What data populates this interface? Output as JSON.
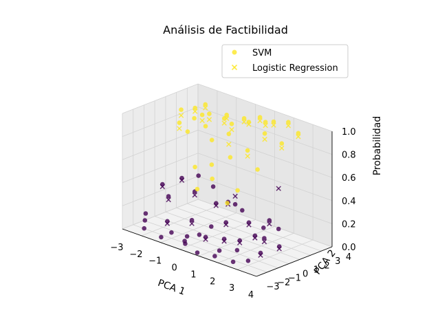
{
  "chart_data": {
    "type": "scatter",
    "title": "Análisis de Factibilidad",
    "xlabel": "PCA 1",
    "ylabel": "PCA 2",
    "zlabel": "Probabilidad",
    "xlim": [
      -3,
      4
    ],
    "ylim": [
      -3,
      4
    ],
    "zlim": [
      0,
      1
    ],
    "xticks": [
      "−3",
      "−2",
      "−1",
      "0",
      "1",
      "2",
      "3",
      "4"
    ],
    "yticks": [
      "−3",
      "−2",
      "−1",
      "0",
      "1",
      "2",
      "3",
      "4"
    ],
    "zticks": [
      "0.0",
      "0.2",
      "0.4",
      "0.6",
      "0.8",
      "1.0"
    ],
    "grid": true,
    "legend_position": "top-right",
    "colors": {
      "high": "#fde725",
      "low": "#440154"
    },
    "series": [
      {
        "name": "SVM",
        "marker": "circle",
        "points": [
          [
            -1.0,
            1.5,
            0.95
          ],
          [
            -0.5,
            2.0,
            0.92
          ],
          [
            -1.5,
            1.0,
            0.9
          ],
          [
            0.5,
            2.5,
            0.93
          ],
          [
            -0.8,
            0.8,
            0.88
          ],
          [
            1.2,
            2.8,
            0.96
          ],
          [
            -2.0,
            0.5,
            0.85
          ],
          [
            0.0,
            1.8,
            0.91
          ],
          [
            -1.2,
            1.2,
            0.94
          ],
          [
            0.8,
            3.0,
            0.97
          ],
          [
            -0.3,
            0.5,
            0.8
          ],
          [
            1.5,
            2.2,
            0.9
          ],
          [
            -1.8,
            1.6,
            0.95
          ],
          [
            0.3,
            1.0,
            0.87
          ],
          [
            -0.6,
            2.4,
            0.93
          ],
          [
            2.0,
            3.5,
            0.98
          ],
          [
            -1.4,
            0.2,
            0.82
          ],
          [
            1.0,
            1.5,
            0.75
          ],
          [
            0.6,
            0.6,
            0.7
          ],
          [
            1.8,
            1.0,
            0.65
          ],
          [
            -0.2,
            0.3,
            0.6
          ],
          [
            -2.3,
            1.2,
            0.92
          ],
          [
            1.4,
            3.2,
            0.96
          ],
          [
            0.2,
            2.6,
            0.94
          ],
          [
            -0.9,
            0.0,
            0.55
          ],
          [
            2.5,
            2.0,
            0.88
          ],
          [
            0.0,
            0.0,
            0.5
          ],
          [
            -1.6,
            2.2,
            0.97
          ],
          [
            1.1,
            0.4,
            0.45
          ],
          [
            2.8,
            3.0,
            0.95
          ],
          [
            -0.5,
            -0.5,
            0.4
          ],
          [
            0.9,
            -0.2,
            0.35
          ]
        ]
      },
      {
        "name": "Logistic Regression",
        "marker": "x",
        "points": [
          [
            -1.0,
            1.5,
            0.9
          ],
          [
            -0.5,
            2.0,
            0.88
          ],
          [
            0.5,
            2.5,
            0.91
          ],
          [
            1.2,
            2.8,
            0.93
          ],
          [
            -1.2,
            1.2,
            0.89
          ],
          [
            0.8,
            3.0,
            0.94
          ],
          [
            -1.8,
            1.6,
            0.92
          ],
          [
            -0.6,
            2.4,
            0.9
          ],
          [
            2.0,
            3.5,
            0.95
          ],
          [
            1.4,
            3.2,
            0.93
          ],
          [
            0.2,
            2.6,
            0.91
          ],
          [
            -1.6,
            2.2,
            0.94
          ],
          [
            -2.3,
            1.2,
            0.87
          ],
          [
            0.0,
            1.8,
            0.86
          ],
          [
            1.5,
            2.2,
            0.85
          ],
          [
            2.8,
            3.0,
            0.92
          ],
          [
            1.0,
            1.5,
            0.7
          ],
          [
            -2.0,
            0.5,
            0.8
          ],
          [
            0.3,
            1.0,
            0.78
          ],
          [
            2.5,
            2.0,
            0.84
          ]
        ]
      }
    ],
    "low_points": {
      "circle": [
        [
          -1.5,
          -1.5,
          0.1
        ],
        [
          -1.0,
          -2.0,
          0.05
        ],
        [
          -0.5,
          -1.0,
          0.15
        ],
        [
          0.0,
          -2.5,
          0.03
        ],
        [
          0.5,
          -1.5,
          0.08
        ],
        [
          1.0,
          -0.5,
          0.2
        ],
        [
          1.5,
          -2.0,
          0.04
        ],
        [
          2.0,
          -1.0,
          0.12
        ],
        [
          2.5,
          -2.5,
          0.02
        ],
        [
          3.0,
          -0.5,
          0.18
        ],
        [
          -2.0,
          -0.5,
          0.25
        ],
        [
          -2.5,
          -1.8,
          0.06
        ],
        [
          0.2,
          0.0,
          0.3
        ],
        [
          -0.8,
          -0.2,
          0.35
        ],
        [
          1.8,
          0.2,
          0.22
        ],
        [
          2.2,
          -1.6,
          0.07
        ],
        [
          3.2,
          -1.2,
          0.09
        ],
        [
          -1.2,
          -2.6,
          0.02
        ],
        [
          0.8,
          -2.8,
          0.01
        ],
        [
          -0.3,
          -1.8,
          0.05
        ],
        [
          1.3,
          -1.2,
          0.1
        ],
        [
          2.7,
          0.5,
          0.28
        ],
        [
          -2.2,
          -2.4,
          0.03
        ],
        [
          0.6,
          0.4,
          0.32
        ],
        [
          -1.7,
          0.2,
          0.4
        ],
        [
          1.0,
          1.0,
          0.25
        ],
        [
          2.0,
          1.2,
          0.15
        ],
        [
          3.5,
          0.0,
          0.12
        ],
        [
          -0.4,
          0.8,
          0.38
        ],
        [
          0.4,
          -0.8,
          0.14
        ],
        [
          1.6,
          -2.6,
          0.02
        ],
        [
          -2.8,
          -1.2,
          0.08
        ],
        [
          3.0,
          -2.0,
          0.04
        ],
        [
          -1.0,
          0.5,
          0.45
        ],
        [
          2.4,
          -0.3,
          0.16
        ],
        [
          0.0,
          -1.2,
          0.06
        ],
        [
          -2.6,
          0.0,
          0.3
        ],
        [
          1.2,
          0.0,
          0.35
        ],
        [
          2.9,
          1.0,
          0.2
        ],
        [
          -0.2,
          -2.2,
          0.03
        ]
      ],
      "x": [
        [
          -1.5,
          -1.5,
          0.08
        ],
        [
          -0.5,
          -1.0,
          0.12
        ],
        [
          0.5,
          -1.5,
          0.06
        ],
        [
          1.0,
          -0.5,
          0.18
        ],
        [
          2.0,
          -1.0,
          0.1
        ],
        [
          3.0,
          -0.5,
          0.15
        ],
        [
          -2.0,
          -0.5,
          0.22
        ],
        [
          0.2,
          0.0,
          0.28
        ],
        [
          1.8,
          0.2,
          0.2
        ],
        [
          3.2,
          -1.2,
          0.07
        ],
        [
          -0.8,
          -0.2,
          0.32
        ],
        [
          2.7,
          0.5,
          0.25
        ],
        [
          0.6,
          0.4,
          0.3
        ],
        [
          -1.7,
          0.2,
          0.38
        ],
        [
          3.5,
          0.0,
          0.1
        ],
        [
          2.4,
          -0.3,
          0.14
        ],
        [
          1.3,
          -1.2,
          0.08
        ],
        [
          -2.6,
          0.0,
          0.28
        ],
        [
          2.9,
          1.0,
          0.55
        ],
        [
          1.2,
          0.0,
          0.42
        ]
      ]
    },
    "legend": [
      {
        "label": "SVM",
        "marker": "circle"
      },
      {
        "label": "Logistic Regression",
        "marker": "x"
      }
    ]
  }
}
